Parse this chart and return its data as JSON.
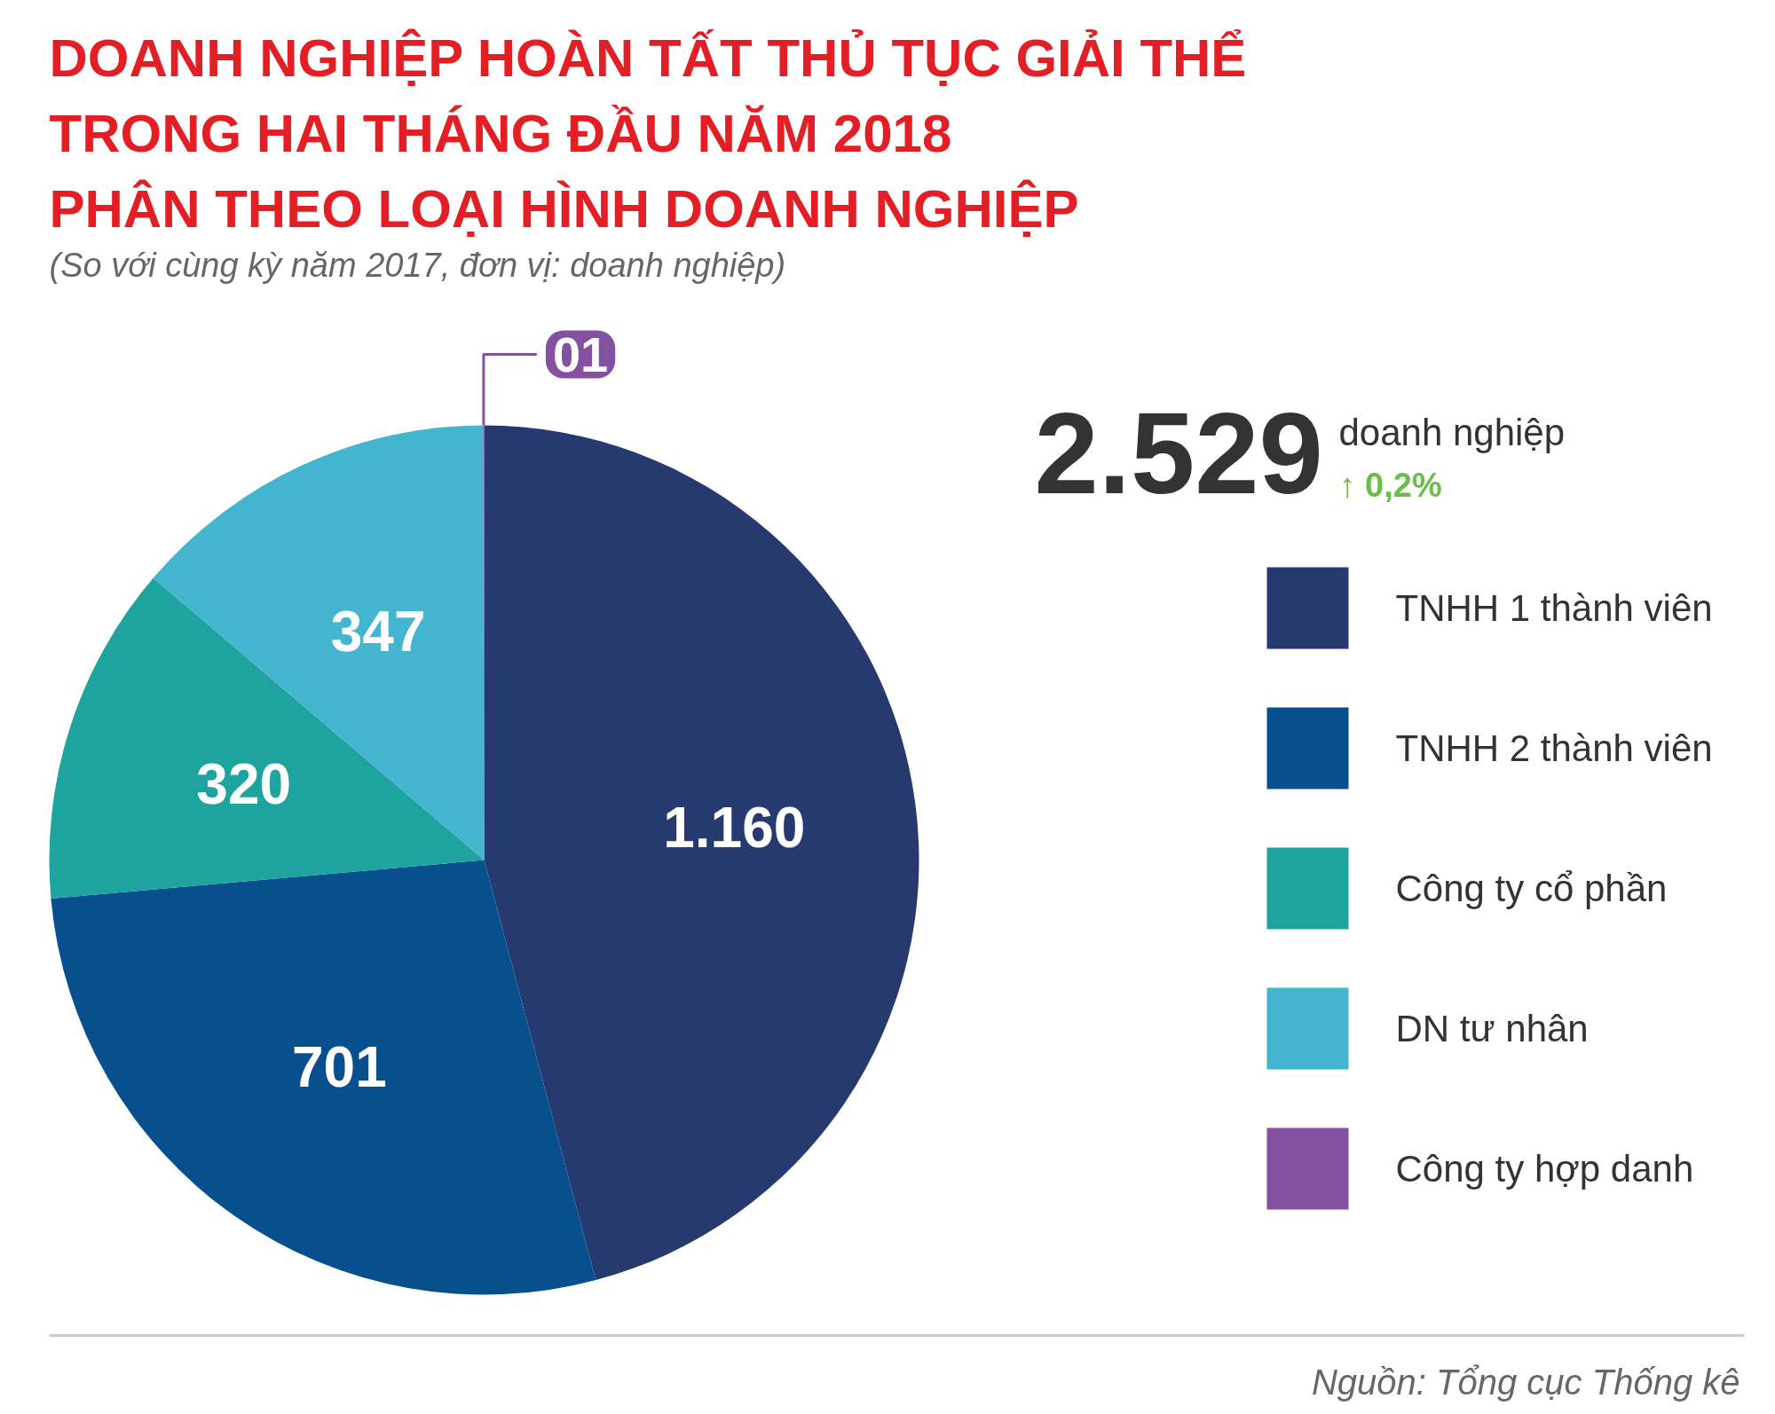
{
  "chart_data": {
    "type": "pie",
    "title": "DOANH NGHIỆP HOÀN TẤT THỦ TỤC GIẢI THỂ\nTRONG HAI THÁNG ĐẦU NĂM 2018\nPHÂN THEO LOẠI HÌNH DOANH NGHIỆP",
    "subtitle": "(So với cùng kỳ năm 2017, đơn vị: doanh nghiệp)",
    "categories": [
      "TNHH 1 thành viên",
      "TNHH 2 thành viên",
      "Công ty cổ phần",
      "DN tư nhân",
      "Công ty hợp danh"
    ],
    "values": [
      1160,
      701,
      320,
      347,
      1
    ],
    "colors": [
      "#263a70",
      "#084f8e",
      "#1ea39f",
      "#44b5cf",
      "#8451a1"
    ],
    "value_labels": [
      "1.160",
      "701",
      "320",
      "347",
      "01"
    ],
    "legend": "right",
    "annotations": [
      "2.529",
      "doanh nghiệp",
      "↑ 0,2%",
      "Nguồn: Tổng cục Thống kê"
    ]
  }
}
